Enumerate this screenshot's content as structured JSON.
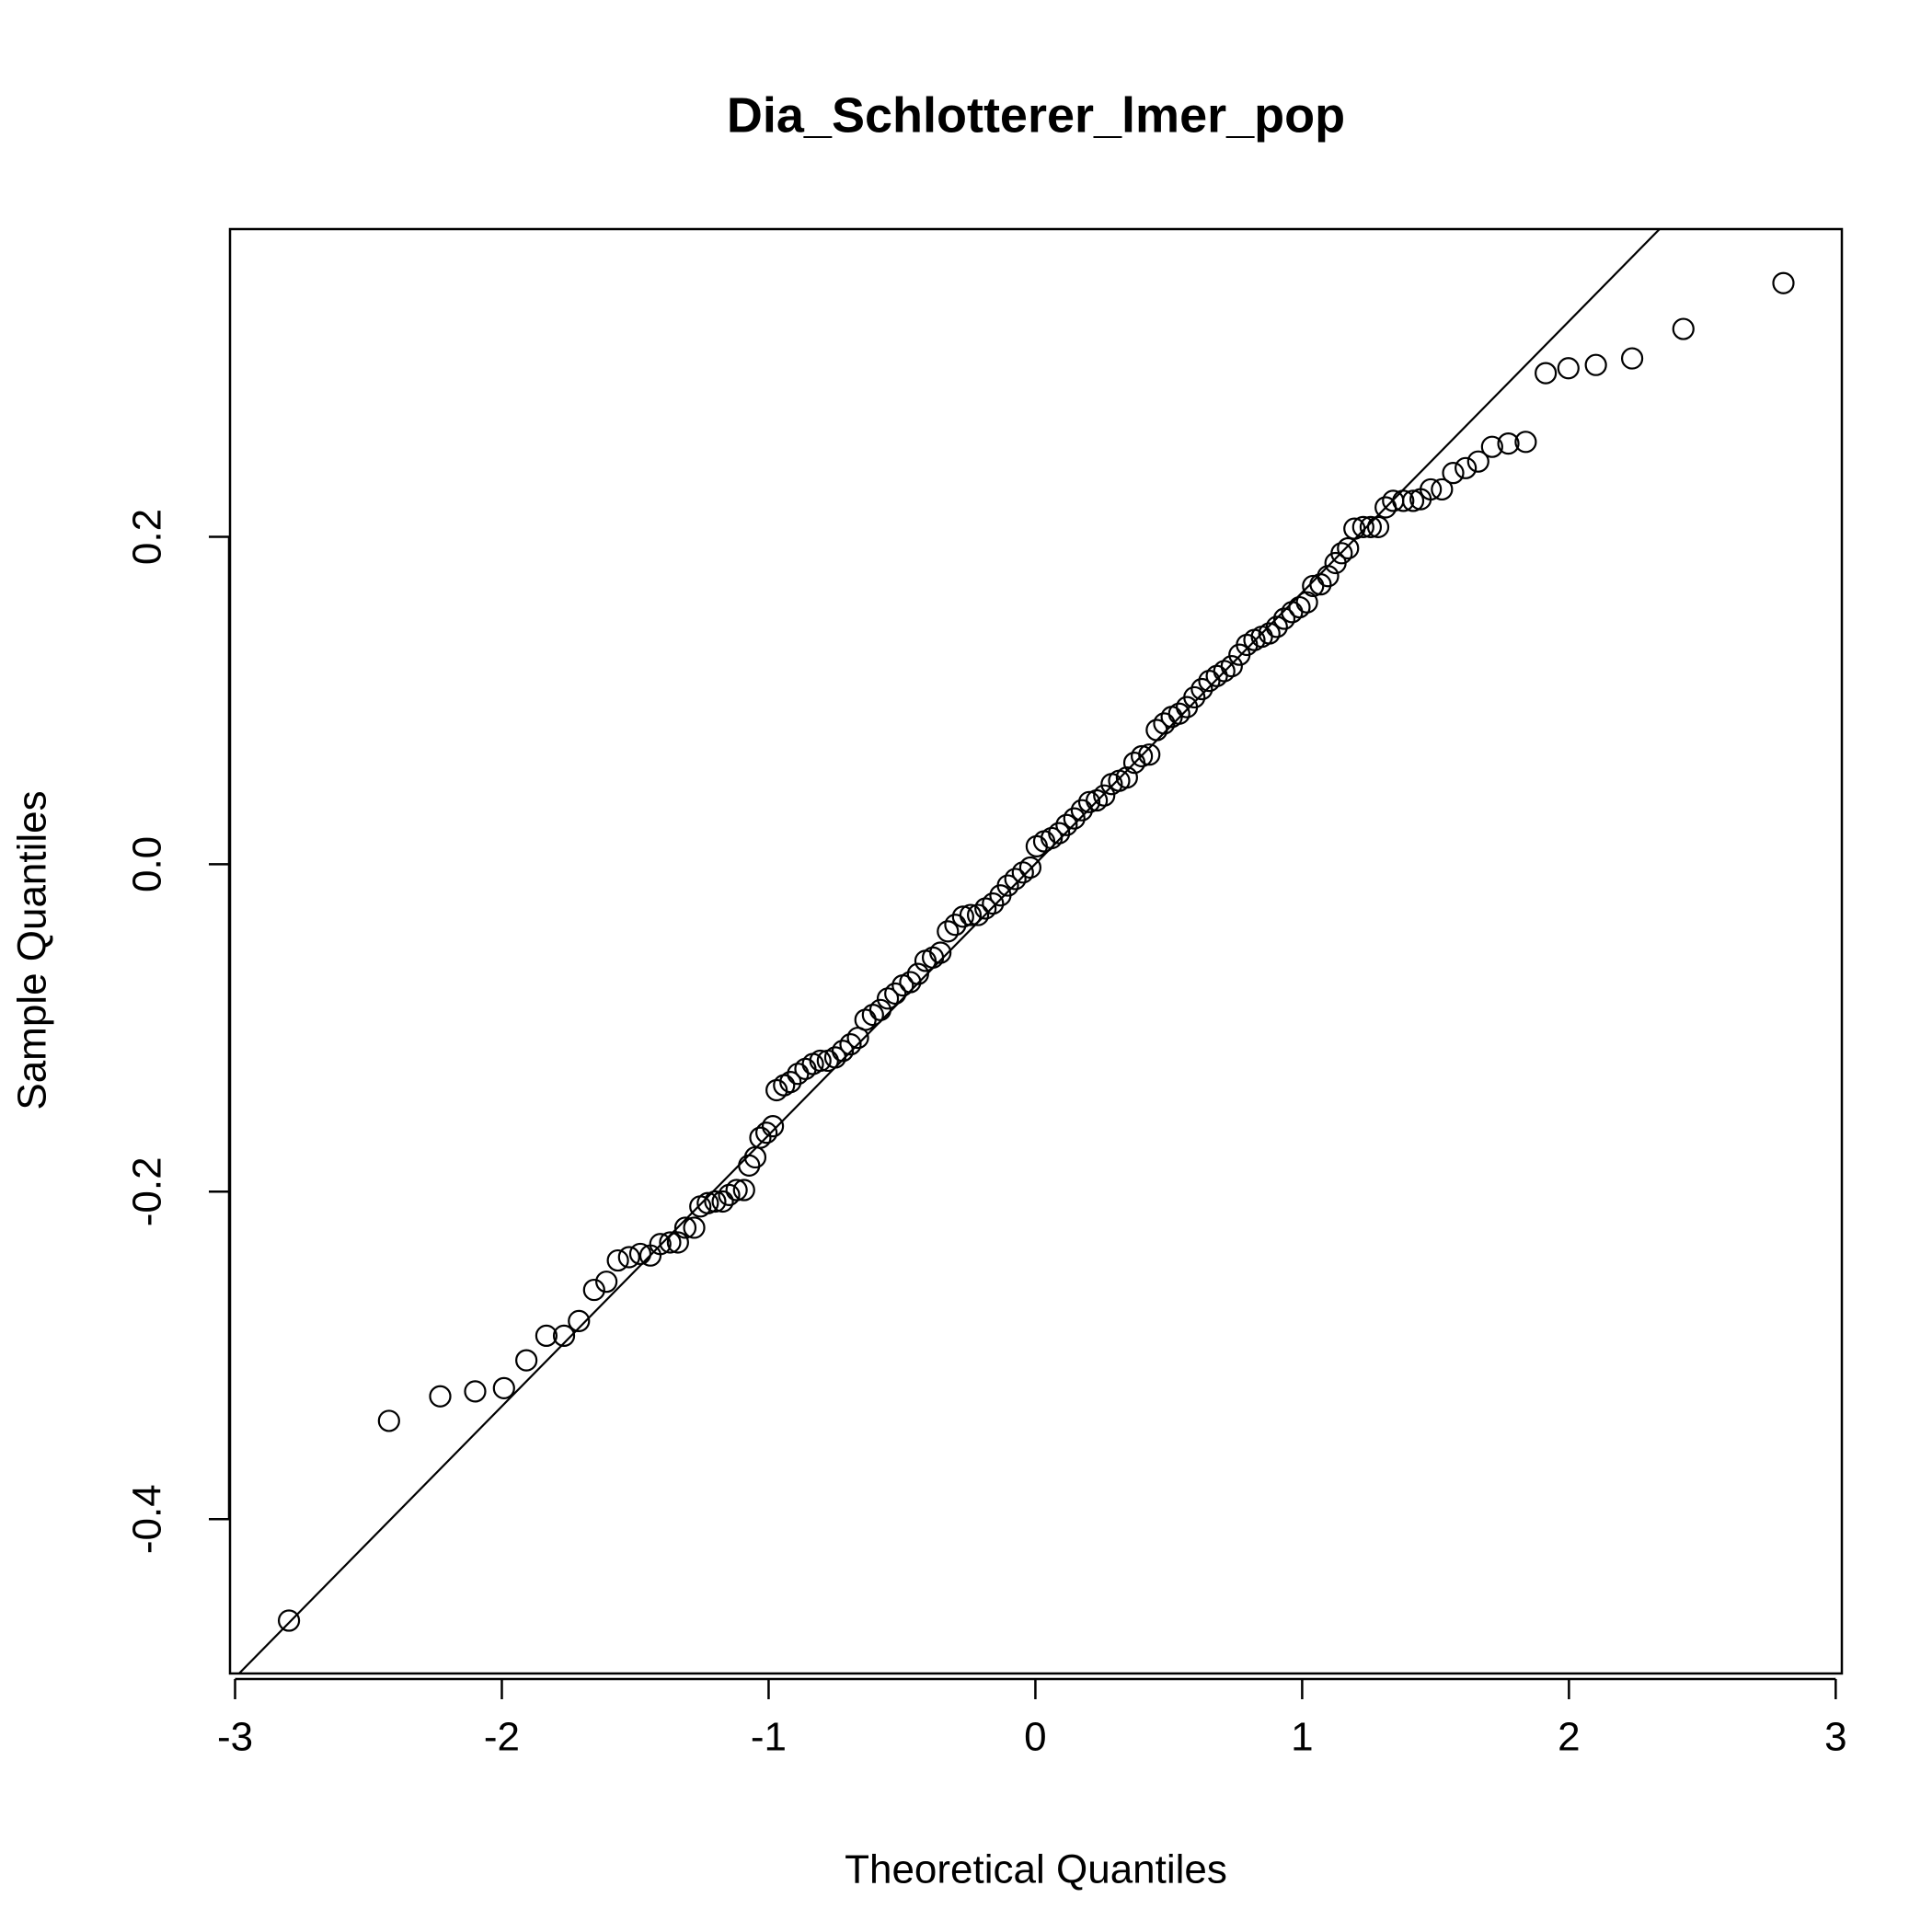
{
  "chart_data": {
    "type": "scatter",
    "title": "Dia_Schlotterer_lmer_pop",
    "x_label": "Theoretical Quantiles",
    "y_label": "Sample Quantiles",
    "xlim": [
      -3.019,
      3.023
    ],
    "ylim": [
      -0.4943,
      0.388
    ],
    "xticks": [
      -3,
      -2,
      -1,
      0,
      1,
      2,
      3
    ],
    "yticks": [
      {
        "value": -0.4,
        "label": "-0.4"
      },
      {
        "value": -0.2,
        "label": "-0.2"
      },
      {
        "value": 0.0,
        "label": "0.0"
      },
      {
        "value": 0.2,
        "label": "0.2"
      }
    ],
    "color": "#000000",
    "reference_line": {
      "intercept": 0.0003,
      "slope": 0.1657
    },
    "x": [
      -2.798,
      -2.423,
      -2.231,
      -2.1,
      -1.992,
      -1.908,
      -1.833,
      -1.767,
      -1.711,
      -1.654,
      -1.608,
      -1.565,
      -1.523,
      -1.481,
      -1.443,
      -1.406,
      -1.369,
      -1.34,
      -1.312,
      -1.279,
      -1.256,
      -1.228,
      -1.2,
      -1.172,
      -1.148,
      -1.12,
      -1.092,
      -1.073,
      -1.05,
      -1.031,
      -1.008,
      -0.984,
      -0.97,
      -0.942,
      -0.918,
      -0.89,
      -0.862,
      -0.834,
      -0.806,
      -0.778,
      -0.75,
      -0.722,
      -0.693,
      -0.665,
      -0.637,
      -0.609,
      -0.581,
      -0.553,
      -0.525,
      -0.497,
      -0.469,
      -0.44,
      -0.412,
      -0.384,
      -0.356,
      -0.328,
      -0.3,
      -0.271,
      -0.243,
      -0.215,
      -0.187,
      -0.159,
      -0.131,
      -0.103,
      -0.075,
      -0.047,
      -0.019,
      0.005,
      0.033,
      0.061,
      0.089,
      0.117,
      0.146,
      0.174,
      0.202,
      0.23,
      0.258,
      0.286,
      0.314,
      0.343,
      0.371,
      0.399,
      0.427,
      0.455,
      0.483,
      0.511,
      0.539,
      0.568,
      0.596,
      0.624,
      0.652,
      0.68,
      0.708,
      0.736,
      0.765,
      0.793,
      0.821,
      0.849,
      0.877,
      0.905,
      0.933,
      0.962,
      0.99,
      1.018,
      1.041,
      1.069,
      1.097,
      1.125,
      1.148,
      1.172,
      1.196,
      1.229,
      1.257,
      1.285,
      1.313,
      1.341,
      1.379,
      1.416,
      1.444,
      1.482,
      1.524,
      1.566,
      1.613,
      1.66,
      1.712,
      1.773,
      1.838,
      1.913,
      1.998,
      2.101,
      2.237,
      2.429,
      2.804
    ],
    "values": [
      -0.462,
      -0.34,
      -0.325,
      -0.322,
      -0.32,
      -0.303,
      -0.288,
      -0.288,
      -0.279,
      -0.26,
      -0.255,
      -0.242,
      -0.24,
      -0.238,
      -0.239,
      -0.232,
      -0.231,
      -0.231,
      -0.222,
      -0.222,
      -0.209,
      -0.207,
      -0.206,
      -0.206,
      -0.202,
      -0.199,
      -0.199,
      -0.184,
      -0.179,
      -0.167,
      -0.164,
      -0.16,
      -0.138,
      -0.135,
      -0.133,
      -0.128,
      -0.125,
      -0.122,
      -0.12,
      -0.12,
      -0.118,
      -0.114,
      -0.11,
      -0.106,
      -0.095,
      -0.092,
      -0.089,
      -0.082,
      -0.079,
      -0.074,
      -0.072,
      -0.067,
      -0.059,
      -0.057,
      -0.054,
      -0.041,
      -0.037,
      -0.032,
      -0.031,
      -0.031,
      -0.027,
      -0.024,
      -0.019,
      -0.013,
      -0.009,
      -0.005,
      -0.002,
      0.011,
      0.014,
      0.016,
      0.019,
      0.024,
      0.028,
      0.033,
      0.038,
      0.039,
      0.042,
      0.049,
      0.051,
      0.053,
      0.062,
      0.066,
      0.067,
      0.082,
      0.086,
      0.09,
      0.092,
      0.096,
      0.102,
      0.107,
      0.112,
      0.115,
      0.118,
      0.121,
      0.128,
      0.134,
      0.137,
      0.139,
      0.141,
      0.145,
      0.15,
      0.154,
      0.157,
      0.16,
      0.17,
      0.171,
      0.176,
      0.184,
      0.19,
      0.193,
      0.205,
      0.206,
      0.206,
      0.206,
      0.218,
      0.222,
      0.222,
      0.222,
      0.223,
      0.229,
      0.229,
      0.239,
      0.242,
      0.246,
      0.255,
      0.257,
      0.258,
      0.3,
      0.303,
      0.305,
      0.309,
      0.327,
      0.355
    ]
  }
}
